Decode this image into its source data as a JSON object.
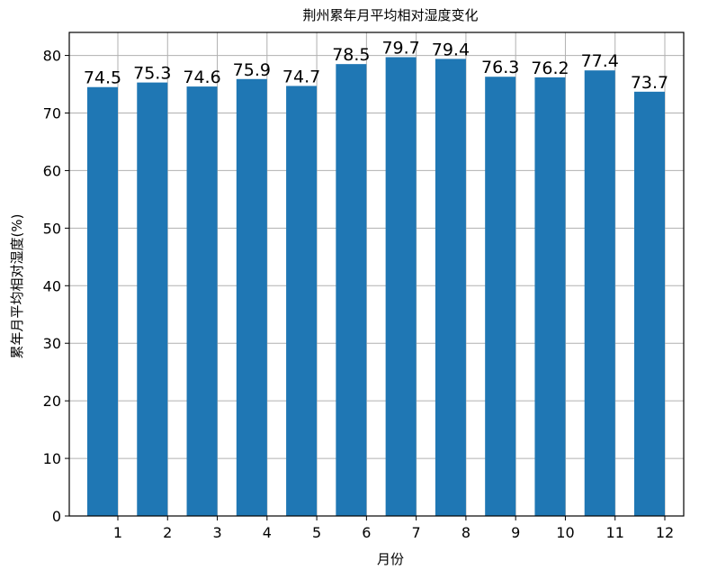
{
  "chart_data": {
    "type": "bar",
    "title": "荆州累年月平均相对湿度变化",
    "xlabel": "月份",
    "ylabel": "累年月平均相对湿度(%)",
    "categories": [
      "1",
      "2",
      "3",
      "4",
      "5",
      "6",
      "7",
      "8",
      "9",
      "10",
      "11",
      "12"
    ],
    "values": [
      74.5,
      75.3,
      74.6,
      75.9,
      74.7,
      78.5,
      79.7,
      79.4,
      76.3,
      76.2,
      77.4,
      73.7
    ],
    "data_labels": [
      "74.5",
      "75.3",
      "74.6",
      "75.9",
      "74.7",
      "78.5",
      "79.7",
      "79.4",
      "76.3",
      "76.2",
      "77.4",
      "73.7"
    ],
    "yticks": [
      "0",
      "10",
      "20",
      "30",
      "40",
      "50",
      "60",
      "70",
      "80"
    ],
    "ylim": [
      0,
      84
    ],
    "grid": true,
    "bar_color": "#1f77b4"
  }
}
